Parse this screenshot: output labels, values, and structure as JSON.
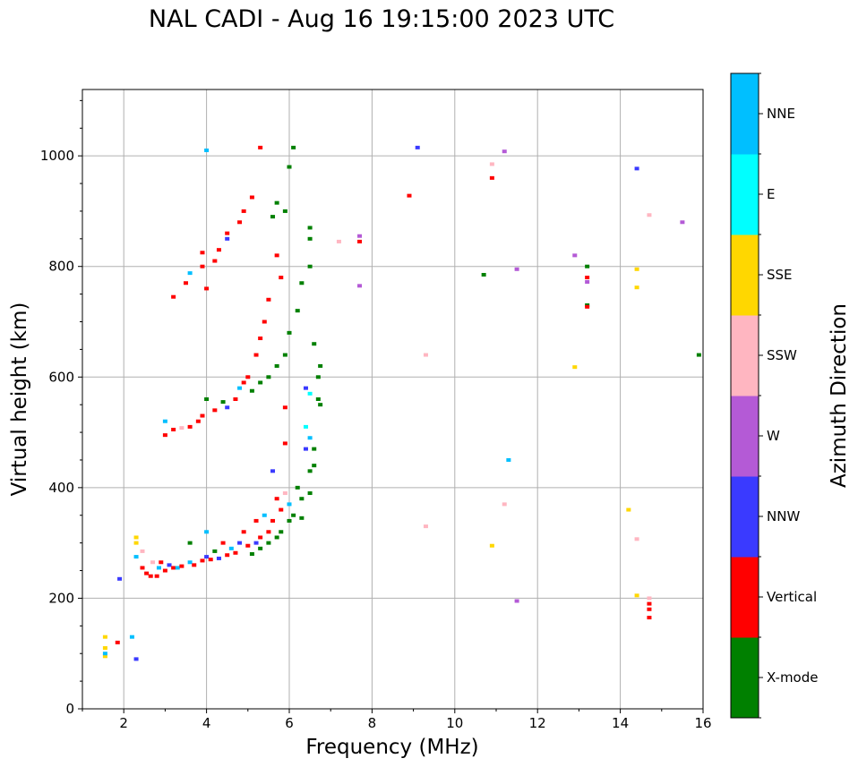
{
  "chart_data": {
    "type": "scatter",
    "title": "NAL CADI - Aug 16 19:15:00 2023 UTC",
    "xlabel": "Frequency (MHz)",
    "ylabel": "Virtual height (km)",
    "xlim": [
      1,
      16
    ],
    "ylim": [
      0,
      1120
    ],
    "xticks": [
      2,
      4,
      6,
      8,
      10,
      12,
      14,
      16
    ],
    "yticks": [
      0,
      200,
      400,
      600,
      800,
      1000
    ],
    "grid": true,
    "colorbar": {
      "label": "Azimuth Direction",
      "categories": [
        "X-mode",
        "Vertical",
        "NNW",
        "W",
        "SSW",
        "SSE",
        "E",
        "NNE"
      ],
      "colors": [
        "#008000",
        "#ff0000",
        "#3a3aff",
        "#b45ad6",
        "#ffb6c1",
        "#ffd700",
        "#00ffff",
        "#00bfff"
      ]
    },
    "point_fields": [
      "frequency_mhz",
      "height_km",
      "direction_index"
    ],
    "points": [
      [
        1.55,
        95,
        5
      ],
      [
        1.55,
        110,
        5
      ],
      [
        1.55,
        100,
        7
      ],
      [
        1.55,
        130,
        5
      ],
      [
        1.85,
        120,
        1
      ],
      [
        1.9,
        235,
        2
      ],
      [
        2.3,
        300,
        5
      ],
      [
        2.3,
        310,
        5
      ],
      [
        2.3,
        275,
        7
      ],
      [
        2.2,
        130,
        7
      ],
      [
        2.3,
        90,
        2
      ],
      [
        2.45,
        285,
        4
      ],
      [
        2.45,
        255,
        1
      ],
      [
        2.55,
        245,
        1
      ],
      [
        2.65,
        240,
        1
      ],
      [
        2.7,
        265,
        4
      ],
      [
        2.8,
        240,
        1
      ],
      [
        2.85,
        255,
        7
      ],
      [
        2.9,
        265,
        1
      ],
      [
        3.0,
        250,
        1
      ],
      [
        3.1,
        260,
        2
      ],
      [
        3.2,
        255,
        1
      ],
      [
        3.3,
        255,
        7
      ],
      [
        3.4,
        258,
        1
      ],
      [
        3.6,
        265,
        7
      ],
      [
        3.7,
        260,
        1
      ],
      [
        3.6,
        300,
        0
      ],
      [
        3.9,
        268,
        1
      ],
      [
        4.0,
        275,
        2
      ],
      [
        4.0,
        320,
        7
      ],
      [
        4.1,
        270,
        1
      ],
      [
        4.2,
        285,
        0
      ],
      [
        4.3,
        272,
        2
      ],
      [
        4.4,
        300,
        1
      ],
      [
        4.5,
        278,
        1
      ],
      [
        4.6,
        290,
        7
      ],
      [
        4.7,
        282,
        1
      ],
      [
        4.8,
        300,
        2
      ],
      [
        4.9,
        320,
        1
      ],
      [
        5.0,
        295,
        1
      ],
      [
        5.1,
        280,
        0
      ],
      [
        5.2,
        340,
        1
      ],
      [
        5.2,
        300,
        2
      ],
      [
        5.3,
        310,
        1
      ],
      [
        5.3,
        290,
        0
      ],
      [
        5.4,
        350,
        7
      ],
      [
        5.5,
        320,
        1
      ],
      [
        5.5,
        300,
        0
      ],
      [
        5.6,
        430,
        2
      ],
      [
        5.6,
        340,
        1
      ],
      [
        5.7,
        380,
        1
      ],
      [
        5.7,
        310,
        0
      ],
      [
        5.8,
        360,
        1
      ],
      [
        5.8,
        320,
        0
      ],
      [
        5.9,
        390,
        4
      ],
      [
        5.9,
        480,
        1
      ],
      [
        6.0,
        340,
        0
      ],
      [
        6.0,
        370,
        7
      ],
      [
        6.1,
        350,
        0
      ],
      [
        6.2,
        400,
        0
      ],
      [
        6.3,
        345,
        0
      ],
      [
        6.3,
        380,
        0
      ],
      [
        6.4,
        470,
        2
      ],
      [
        6.4,
        510,
        6
      ],
      [
        6.5,
        390,
        0
      ],
      [
        6.5,
        430,
        0
      ],
      [
        6.5,
        490,
        7
      ],
      [
        6.6,
        440,
        0
      ],
      [
        6.6,
        470,
        0
      ],
      [
        6.5,
        570,
        6
      ],
      [
        6.7,
        560,
        0
      ],
      [
        6.7,
        600,
        0
      ],
      [
        6.75,
        550,
        0
      ],
      [
        6.75,
        620,
        0
      ],
      [
        5.9,
        545,
        1
      ],
      [
        6.4,
        580,
        2
      ],
      [
        3.0,
        520,
        7
      ],
      [
        3.0,
        495,
        1
      ],
      [
        3.2,
        505,
        1
      ],
      [
        3.4,
        508,
        4
      ],
      [
        3.6,
        510,
        1
      ],
      [
        3.8,
        520,
        1
      ],
      [
        3.9,
        530,
        1
      ],
      [
        4.0,
        560,
        0
      ],
      [
        4.2,
        540,
        1
      ],
      [
        4.4,
        555,
        0
      ],
      [
        4.5,
        545,
        2
      ],
      [
        4.7,
        560,
        1
      ],
      [
        4.8,
        580,
        7
      ],
      [
        4.9,
        590,
        1
      ],
      [
        5.0,
        600,
        1
      ],
      [
        5.1,
        575,
        0
      ],
      [
        5.2,
        640,
        1
      ],
      [
        5.3,
        590,
        0
      ],
      [
        5.3,
        670,
        1
      ],
      [
        5.4,
        700,
        1
      ],
      [
        5.5,
        740,
        1
      ],
      [
        5.5,
        600,
        0
      ],
      [
        5.7,
        620,
        0
      ],
      [
        5.9,
        640,
        0
      ],
      [
        6.0,
        680,
        0
      ],
      [
        6.2,
        720,
        0
      ],
      [
        6.3,
        770,
        0
      ],
      [
        6.5,
        800,
        0
      ],
      [
        6.5,
        870,
        0
      ],
      [
        6.6,
        660,
        0
      ],
      [
        6.5,
        850,
        0
      ],
      [
        3.2,
        745,
        1
      ],
      [
        3.5,
        770,
        1
      ],
      [
        3.6,
        788,
        7
      ],
      [
        3.9,
        800,
        1
      ],
      [
        3.9,
        825,
        1
      ],
      [
        4.0,
        760,
        1
      ],
      [
        4.2,
        810,
        1
      ],
      [
        4.3,
        830,
        1
      ],
      [
        4.5,
        850,
        2
      ],
      [
        4.5,
        860,
        1
      ],
      [
        4.8,
        880,
        1
      ],
      [
        4.9,
        900,
        1
      ],
      [
        5.1,
        925,
        1
      ],
      [
        4.0,
        1010,
        7
      ],
      [
        5.3,
        1015,
        1
      ],
      [
        5.7,
        915,
        0
      ],
      [
        5.6,
        890,
        0
      ],
      [
        5.9,
        900,
        0
      ],
      [
        6.0,
        980,
        0
      ],
      [
        6.1,
        1015,
        0
      ],
      [
        5.7,
        820,
        1
      ],
      [
        5.8,
        780,
        1
      ],
      [
        7.2,
        845,
        4
      ],
      [
        7.7,
        855,
        3
      ],
      [
        7.7,
        765,
        3
      ],
      [
        7.7,
        845,
        1
      ],
      [
        8.9,
        928,
        1
      ],
      [
        9.1,
        1015,
        2
      ],
      [
        9.3,
        640,
        4
      ],
      [
        9.3,
        330,
        4
      ],
      [
        10.7,
        785,
        0
      ],
      [
        10.9,
        985,
        4
      ],
      [
        10.9,
        960,
        1
      ],
      [
        10.9,
        295,
        5
      ],
      [
        11.2,
        1008,
        3
      ],
      [
        11.2,
        370,
        4
      ],
      [
        11.3,
        450,
        7
      ],
      [
        11.5,
        795,
        3
      ],
      [
        11.5,
        195,
        3
      ],
      [
        12.9,
        820,
        3
      ],
      [
        12.9,
        618,
        5
      ],
      [
        13.2,
        800,
        0
      ],
      [
        13.2,
        780,
        1
      ],
      [
        13.2,
        772,
        3
      ],
      [
        13.2,
        730,
        0
      ],
      [
        13.2,
        727,
        1
      ],
      [
        14.2,
        360,
        5
      ],
      [
        14.4,
        977,
        2
      ],
      [
        14.4,
        795,
        5
      ],
      [
        14.4,
        762,
        5
      ],
      [
        14.4,
        307,
        4
      ],
      [
        14.4,
        205,
        5
      ],
      [
        14.7,
        893,
        4
      ],
      [
        14.7,
        200,
        4
      ],
      [
        14.7,
        190,
        1
      ],
      [
        14.7,
        180,
        1
      ],
      [
        14.7,
        165,
        1
      ],
      [
        15.5,
        880,
        3
      ],
      [
        15.9,
        640,
        0
      ]
    ]
  }
}
